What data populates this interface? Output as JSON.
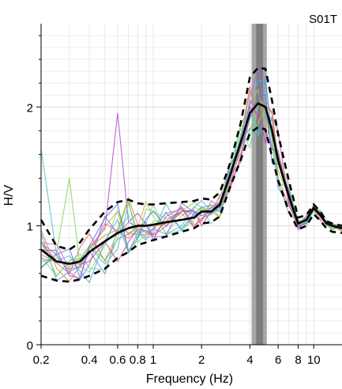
{
  "chart_data": {
    "type": "line",
    "station_label": "S01T",
    "xlabel": "Frequency (Hz)",
    "ylabel": "H/V",
    "x_scale": "log",
    "xlim": [
      0.2,
      15
    ],
    "ylim": [
      0,
      2.7
    ],
    "x_ticks": [
      {
        "value": 0.2,
        "label": "0.2"
      },
      {
        "value": 0.4,
        "label": "0.4"
      },
      {
        "value": 0.6,
        "label": "0.6"
      },
      {
        "value": 0.8,
        "label": "0.8"
      },
      {
        "value": 1,
        "label": "1"
      },
      {
        "value": 2,
        "label": "2"
      },
      {
        "value": 4,
        "label": "4"
      },
      {
        "value": 6,
        "label": "6"
      },
      {
        "value": 8,
        "label": "8"
      },
      {
        "value": 10,
        "label": "10"
      }
    ],
    "y_ticks": [
      {
        "value": 0,
        "label": "0"
      },
      {
        "value": 1,
        "label": "1"
      },
      {
        "value": 2,
        "label": "2"
      }
    ],
    "grid": true,
    "peak_band": {
      "x_range": [
        4.1,
        5.1
      ],
      "center": 4.6,
      "colors": [
        "#a6a6a6",
        "#7d7d7d"
      ]
    },
    "mean_curve": {
      "style": "solid",
      "color": "#000000",
      "x": [
        0.2,
        0.25,
        0.3,
        0.35,
        0.4,
        0.5,
        0.6,
        0.7,
        0.8,
        0.9,
        1.0,
        1.2,
        1.5,
        1.8,
        2.0,
        2.3,
        2.6,
        3.0,
        3.5,
        4.0,
        4.5,
        5.0,
        5.5,
        6.0,
        7.0,
        8.0,
        9.0,
        10.0,
        11.0,
        12.0,
        13.0,
        15.0
      ],
      "y": [
        0.8,
        0.7,
        0.68,
        0.7,
        0.78,
        0.87,
        0.94,
        0.98,
        1.0,
        1.0,
        1.01,
        1.03,
        1.05,
        1.07,
        1.12,
        1.12,
        1.18,
        1.42,
        1.7,
        1.95,
        2.03,
        2.0,
        1.8,
        1.55,
        1.25,
        1.02,
        1.05,
        1.15,
        1.09,
        1.02,
        1.0,
        0.98
      ]
    },
    "std_curves": {
      "style": "dashed",
      "color": "#000000",
      "upper": [
        1.05,
        0.83,
        0.8,
        0.86,
        0.97,
        1.12,
        1.2,
        1.22,
        1.19,
        1.18,
        1.18,
        1.19,
        1.2,
        1.21,
        1.23,
        1.22,
        1.28,
        1.52,
        1.86,
        2.25,
        2.33,
        2.32,
        2.05,
        1.77,
        1.38,
        1.07,
        1.09,
        1.18,
        1.12,
        1.04,
        1.02,
        1.0
      ],
      "lower": [
        0.58,
        0.54,
        0.53,
        0.55,
        0.58,
        0.64,
        0.73,
        0.78,
        0.84,
        0.86,
        0.88,
        0.91,
        0.95,
        0.98,
        1.02,
        1.03,
        1.08,
        1.32,
        1.55,
        1.78,
        1.83,
        1.81,
        1.58,
        1.38,
        1.12,
        0.97,
        1.0,
        1.1,
        1.04,
        0.98,
        0.95,
        0.94
      ]
    },
    "window_curves": {
      "count": 14,
      "colors": [
        "#b04fc9",
        "#4fc3c9",
        "#8ad45a",
        "#e063c2",
        "#5f9bd8",
        "#c9b84f",
        "#e06b6b",
        "#6bd8a8",
        "#9d6be0",
        "#d88b4f",
        "#4fb0e0",
        "#c94f8b",
        "#7ad84f",
        "#4f7ad8"
      ],
      "spikes": [
        {
          "x": 0.58,
          "y": 1.95
        },
        {
          "x": 0.21,
          "y": 1.65
        },
        {
          "x": 0.28,
          "y": 1.4
        }
      ]
    }
  }
}
